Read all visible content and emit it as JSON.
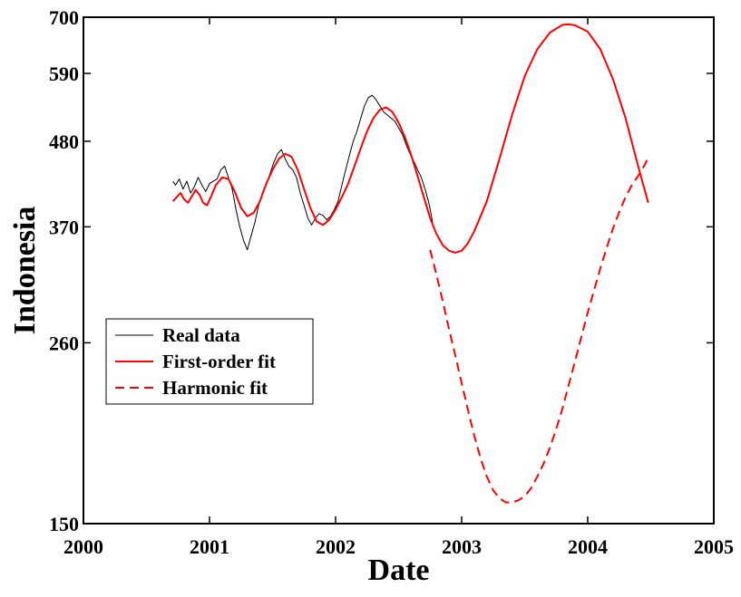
{
  "chart_data": {
    "type": "line",
    "title": "",
    "xlabel": "Date",
    "ylabel": "Indonesia",
    "xlim": [
      2000,
      2005
    ],
    "ylim": [
      150,
      700
    ],
    "y_scale": "log",
    "x_ticks": [
      2000,
      2001,
      2002,
      2003,
      2004,
      2005
    ],
    "x_tick_labels": [
      "2000",
      "2001",
      "2002",
      "2003",
      "2004",
      "2005"
    ],
    "y_ticks": [
      150,
      260,
      370,
      480,
      590,
      700
    ],
    "y_tick_labels": [
      "150",
      "260",
      "370",
      "480",
      "590",
      "700"
    ],
    "grid": false,
    "legend_position": "center-left",
    "series": [
      {
        "name": "Real data",
        "style": "solid",
        "color": "#000000",
        "x": [
          2000.71,
          2000.73,
          2000.76,
          2000.79,
          2000.82,
          2000.85,
          2000.88,
          2000.91,
          2000.94,
          2000.97,
          2001.0,
          2001.03,
          2001.06,
          2001.09,
          2001.12,
          2001.15,
          2001.18,
          2001.21,
          2001.24,
          2001.27,
          2001.3,
          2001.33,
          2001.36,
          2001.39,
          2001.42,
          2001.45,
          2001.48,
          2001.51,
          2001.54,
          2001.57,
          2001.6,
          2001.63,
          2001.66,
          2001.69,
          2001.72,
          2001.75,
          2001.78,
          2001.81,
          2001.84,
          2001.87,
          2001.9,
          2001.93,
          2001.96,
          2001.99,
          2002.02,
          2002.05,
          2002.08,
          2002.11,
          2002.14,
          2002.17,
          2002.2,
          2002.23,
          2002.26,
          2002.29,
          2002.32,
          2002.35,
          2002.38,
          2002.41,
          2002.44,
          2002.47,
          2002.5,
          2002.53,
          2002.56,
          2002.59,
          2002.62,
          2002.65,
          2002.68,
          2002.71,
          2002.74,
          2002.77
        ],
        "y": [
          425,
          420,
          428,
          415,
          425,
          410,
          418,
          430,
          420,
          412,
          422,
          425,
          428,
          440,
          445,
          430,
          415,
          390,
          370,
          355,
          345,
          360,
          375,
          395,
          410,
          420,
          435,
          450,
          462,
          468,
          455,
          445,
          440,
          430,
          410,
          395,
          380,
          372,
          380,
          385,
          383,
          378,
          382,
          390,
          400,
          420,
          440,
          460,
          480,
          495,
          515,
          535,
          548,
          552,
          545,
          535,
          525,
          520,
          515,
          510,
          500,
          490,
          475,
          462,
          452,
          440,
          430,
          415,
          398,
          375
        ]
      },
      {
        "name": "First-order fit",
        "style": "solid",
        "color": "#ff0000",
        "x": [
          2000.71,
          2000.74,
          2000.77,
          2000.8,
          2000.83,
          2000.86,
          2000.89,
          2000.92,
          2000.95,
          2000.98,
          2001.01,
          2001.05,
          2001.1,
          2001.15,
          2001.2,
          2001.25,
          2001.3,
          2001.35,
          2001.4,
          2001.45,
          2001.5,
          2001.55,
          2001.6,
          2001.65,
          2001.7,
          2001.75,
          2001.8,
          2001.85,
          2001.9,
          2001.95,
          2002.0,
          2002.05,
          2002.1,
          2002.15,
          2002.2,
          2002.25,
          2002.3,
          2002.35,
          2002.4,
          2002.45,
          2002.5,
          2002.55,
          2002.6,
          2002.65,
          2002.7,
          2002.75,
          2002.8,
          2002.85,
          2002.9,
          2002.95,
          2003.0,
          2003.05,
          2003.1,
          2003.2,
          2003.3,
          2003.4,
          2003.5,
          2003.6,
          2003.7,
          2003.8,
          2003.85,
          2003.9,
          2004.0,
          2004.1,
          2004.2,
          2004.3,
          2004.4,
          2004.48
        ],
        "y": [
          400,
          405,
          410,
          402,
          398,
          406,
          414,
          408,
          398,
          395,
          405,
          420,
          430,
          428,
          412,
          392,
          382,
          386,
          400,
          422,
          440,
          455,
          462,
          458,
          440,
          415,
          392,
          376,
          372,
          378,
          390,
          405,
          422,
          445,
          470,
          495,
          515,
          528,
          532,
          525,
          508,
          486,
          460,
          432,
          405,
          380,
          362,
          350,
          344,
          342,
          344,
          352,
          365,
          400,
          455,
          520,
          585,
          635,
          668,
          684,
          685,
          683,
          670,
          635,
          580,
          515,
          445,
          398
        ]
      },
      {
        "name": "Harmonic fit",
        "style": "dashed",
        "color": "#ff0000",
        "x": [
          2002.75,
          2002.8,
          2002.85,
          2002.9,
          2002.95,
          2003.0,
          2003.05,
          2003.1,
          2003.15,
          2003.2,
          2003.25,
          2003.3,
          2003.35,
          2003.4,
          2003.45,
          2003.5,
          2003.55,
          2003.6,
          2003.65,
          2003.7,
          2003.75,
          2003.8,
          2003.85,
          2003.9,
          2003.95,
          2004.0,
          2004.05,
          2004.1,
          2004.15,
          2004.2,
          2004.25,
          2004.3,
          2004.35,
          2004.4,
          2004.45,
          2004.49
        ],
        "y": [
          345,
          320,
          295,
          271,
          250,
          230,
          212,
          196,
          183,
          173,
          166,
          162,
          160,
          160,
          161,
          163,
          167,
          173,
          180,
          189,
          200,
          213,
          229,
          246,
          265,
          285,
          305,
          326,
          347,
          368,
          387,
          405,
          420,
          432,
          446,
          460
        ]
      }
    ]
  }
}
